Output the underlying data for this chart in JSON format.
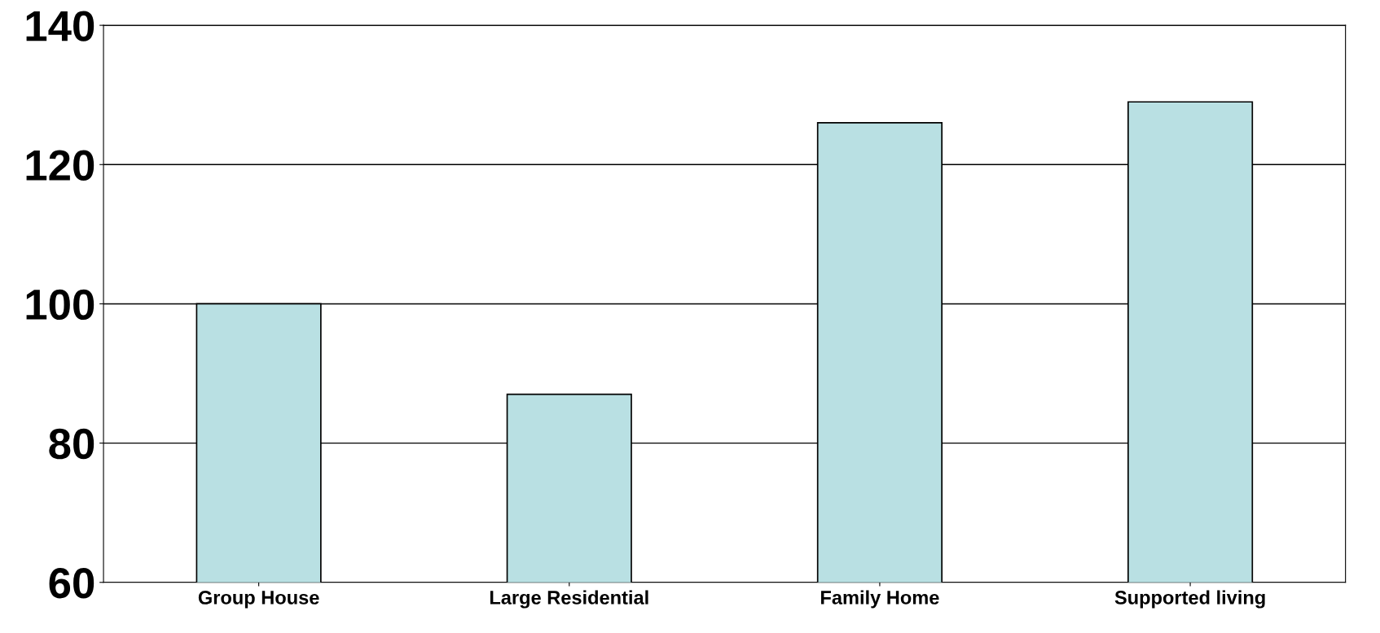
{
  "chart_data": {
    "type": "bar",
    "categories": [
      "Group House",
      "Large Residential",
      "Family Home",
      "Supported living"
    ],
    "values": [
      100,
      87,
      126,
      129
    ],
    "color": "#b9e0e3",
    "ylim": [
      60,
      140
    ],
    "yticks": [
      60,
      80,
      100,
      120,
      140
    ],
    "grid": "y"
  }
}
